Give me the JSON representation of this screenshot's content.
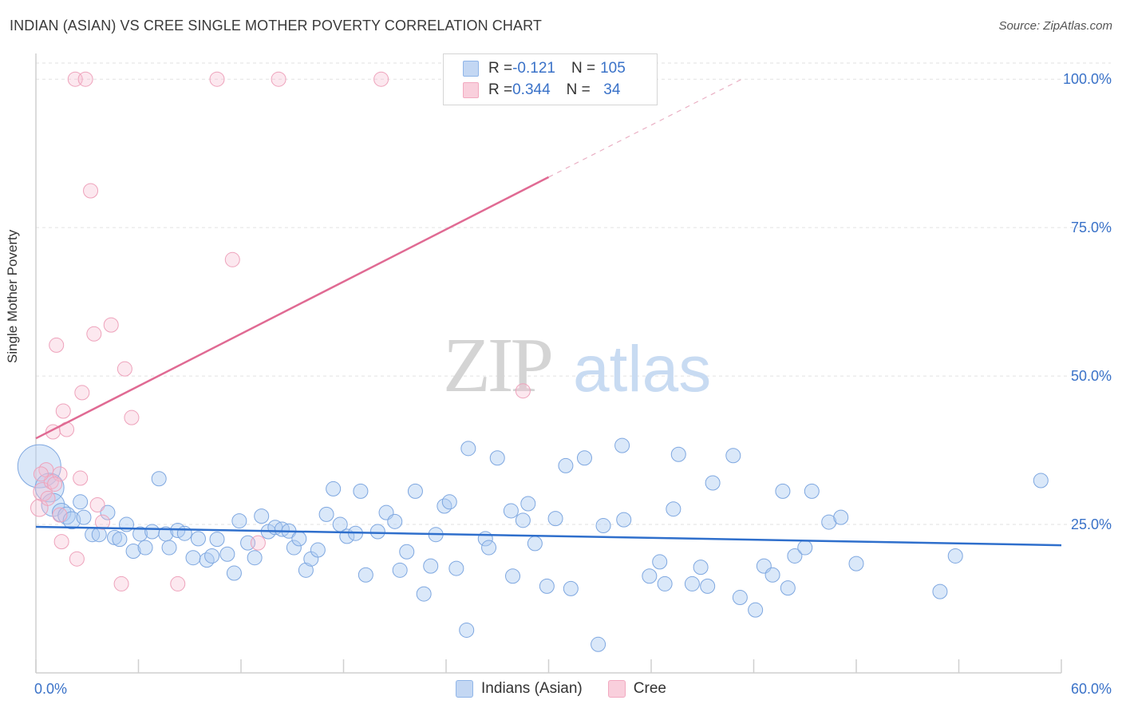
{
  "title": "INDIAN (ASIAN) VS CREE SINGLE MOTHER POVERTY CORRELATION CHART",
  "source": "Source: ZipAtlas.com",
  "watermark": {
    "zip": "ZIP",
    "atlas": "atlas"
  },
  "colors": {
    "blue": "#8fb5e8",
    "blue_line": "#2f6fcc",
    "pink": "#f2a9c0",
    "pink_line": "#e06a93",
    "tick_blue": "#3a72c8"
  },
  "legend": {
    "rows": [
      {
        "r_label": "R = ",
        "r_value": "-0.121",
        "n_label": "N = ",
        "n_value": "105"
      },
      {
        "r_label": "R = ",
        "r_value": "0.344",
        "n_label": "N = ",
        "n_value": " 34"
      }
    ]
  },
  "chart_data": {
    "type": "scatter",
    "ylabel": "Single Mother Poverty",
    "xlabel": "",
    "xlim": [
      0,
      60
    ],
    "ylim": [
      0,
      105
    ],
    "x_tick_labels": [
      "0.0%",
      "60.0%"
    ],
    "y_ticks": [
      25,
      50,
      75,
      100
    ],
    "y_tick_labels": [
      "25.0%",
      "50.0%",
      "75.0%",
      "100.0%"
    ],
    "grid": true,
    "legend_position": "top-center",
    "series": [
      {
        "name": "Indians (Asian)",
        "color": "#8fb5e8",
        "trend": {
          "x0": 0,
          "y0": 24.6,
          "x1": 60,
          "y1": 21.5
        },
        "points": [
          [
            0.2,
            34.8,
            3
          ],
          [
            0.8,
            31.2,
            2
          ],
          [
            1.0,
            28.3,
            1.6
          ],
          [
            1.5,
            27.0,
            1.3
          ],
          [
            1.8,
            26.5,
            1.2
          ],
          [
            2.1,
            25.7,
            1.2
          ],
          [
            2.6,
            28.8,
            1
          ],
          [
            2.8,
            26.2,
            1
          ],
          [
            3.3,
            23.3,
            1
          ],
          [
            3.7,
            23.3,
            1
          ],
          [
            4.2,
            27.0,
            1
          ],
          [
            4.6,
            22.8,
            1
          ],
          [
            4.9,
            22.5,
            1
          ],
          [
            5.3,
            25.0,
            1
          ],
          [
            5.7,
            20.5,
            1
          ],
          [
            6.1,
            23.4,
            1
          ],
          [
            6.4,
            21.1,
            1
          ],
          [
            6.8,
            23.8,
            1
          ],
          [
            7.2,
            32.7,
            1
          ],
          [
            7.6,
            23.4,
            1
          ],
          [
            7.8,
            21.1,
            1
          ],
          [
            8.3,
            24.0,
            1
          ],
          [
            8.7,
            23.5,
            1
          ],
          [
            9.2,
            19.4,
            1
          ],
          [
            9.5,
            22.6,
            1
          ],
          [
            10.0,
            19.0,
            1
          ],
          [
            10.3,
            19.7,
            1
          ],
          [
            10.6,
            22.5,
            1
          ],
          [
            11.2,
            20.0,
            1
          ],
          [
            11.6,
            16.8,
            1
          ],
          [
            11.9,
            25.6,
            1
          ],
          [
            12.4,
            21.9,
            1
          ],
          [
            12.8,
            19.4,
            1
          ],
          [
            13.2,
            26.4,
            1
          ],
          [
            13.6,
            23.8,
            1
          ],
          [
            14.0,
            24.5,
            1
          ],
          [
            14.4,
            24.2,
            1
          ],
          [
            14.8,
            23.9,
            1
          ],
          [
            15.1,
            21.1,
            1
          ],
          [
            15.4,
            22.6,
            1
          ],
          [
            15.8,
            17.3,
            1
          ],
          [
            16.1,
            19.2,
            1
          ],
          [
            16.5,
            20.7,
            1
          ],
          [
            17.0,
            26.7,
            1
          ],
          [
            17.4,
            31.0,
            1
          ],
          [
            17.8,
            25.0,
            1
          ],
          [
            18.2,
            23.0,
            1
          ],
          [
            18.7,
            23.5,
            1
          ],
          [
            19.0,
            30.6,
            1
          ],
          [
            19.3,
            16.5,
            1
          ],
          [
            20.0,
            23.8,
            1
          ],
          [
            20.5,
            27.0,
            1
          ],
          [
            21.0,
            25.5,
            1
          ],
          [
            21.3,
            17.3,
            1
          ],
          [
            21.7,
            20.4,
            1
          ],
          [
            22.2,
            30.6,
            1
          ],
          [
            22.7,
            13.3,
            1
          ],
          [
            23.1,
            18.0,
            1
          ],
          [
            23.4,
            23.3,
            1
          ],
          [
            23.9,
            28.1,
            1
          ],
          [
            24.2,
            28.8,
            1
          ],
          [
            24.6,
            17.6,
            1
          ],
          [
            25.2,
            7.2,
            1
          ],
          [
            25.3,
            37.8,
            1
          ],
          [
            26.3,
            22.6,
            1
          ],
          [
            26.5,
            21.1,
            1
          ],
          [
            27.0,
            36.2,
            1
          ],
          [
            27.9,
            16.3,
            1
          ],
          [
            27.8,
            27.3,
            1
          ],
          [
            28.5,
            25.7,
            1
          ],
          [
            28.8,
            28.5,
            1
          ],
          [
            29.2,
            21.8,
            1
          ],
          [
            29.9,
            14.6,
            1
          ],
          [
            30.4,
            26.0,
            1
          ],
          [
            31.0,
            34.9,
            1
          ],
          [
            31.3,
            14.2,
            1
          ],
          [
            32.1,
            36.2,
            1
          ],
          [
            32.9,
            4.8,
            1
          ],
          [
            33.2,
            24.8,
            1
          ],
          [
            34.3,
            38.3,
            1
          ],
          [
            34.4,
            25.8,
            1
          ],
          [
            35.9,
            16.3,
            1
          ],
          [
            36.5,
            18.7,
            1
          ],
          [
            36.8,
            15.0,
            1
          ],
          [
            37.3,
            27.6,
            1
          ],
          [
            37.6,
            36.8,
            1
          ],
          [
            38.4,
            15.0,
            1
          ],
          [
            38.9,
            17.8,
            1
          ],
          [
            39.3,
            14.6,
            1
          ],
          [
            39.6,
            32.0,
            1
          ],
          [
            40.8,
            36.6,
            1
          ],
          [
            41.2,
            12.7,
            1
          ],
          [
            42.1,
            10.6,
            1
          ],
          [
            42.6,
            18.0,
            1
          ],
          [
            43.1,
            16.5,
            1
          ],
          [
            43.7,
            30.6,
            1
          ],
          [
            44.0,
            14.3,
            1
          ],
          [
            44.4,
            19.7,
            1
          ],
          [
            45.0,
            21.1,
            1
          ],
          [
            45.4,
            30.6,
            1
          ],
          [
            46.4,
            25.4,
            1
          ],
          [
            47.1,
            26.2,
            1
          ],
          [
            48.0,
            18.4,
            1
          ],
          [
            52.9,
            13.7,
            1
          ],
          [
            53.8,
            19.7,
            1
          ],
          [
            58.8,
            32.4,
            1
          ]
        ]
      },
      {
        "name": "Cree",
        "color": "#f2a9c0",
        "trend": {
          "x0": 0,
          "y0": 39.5,
          "x1": 30,
          "y1": 83.5,
          "dash_x1": 41.3,
          "dash_y1": 100
        },
        "points": [
          [
            0.2,
            27.8,
            1.2
          ],
          [
            0.4,
            30.5,
            1.3
          ],
          [
            0.6,
            34.2,
            1
          ],
          [
            0.9,
            32.2,
            1
          ],
          [
            1.0,
            40.6,
            1
          ],
          [
            1.2,
            55.2,
            1
          ],
          [
            1.4,
            33.5,
            1
          ],
          [
            1.5,
            22.1,
            1
          ],
          [
            1.6,
            44.1,
            1
          ],
          [
            1.8,
            41.0,
            1
          ],
          [
            2.4,
            19.2,
            1
          ],
          [
            2.7,
            47.2,
            1
          ],
          [
            2.6,
            32.8,
            1
          ],
          [
            3.2,
            81.2,
            1
          ],
          [
            3.4,
            57.1,
            1
          ],
          [
            3.6,
            28.3,
            1
          ],
          [
            3.9,
            25.4,
            1
          ],
          [
            4.4,
            58.6,
            1
          ],
          [
            5.0,
            15.0,
            1
          ],
          [
            5.2,
            51.2,
            1
          ],
          [
            5.6,
            43.0,
            1
          ],
          [
            8.3,
            15.0,
            1
          ],
          [
            10.6,
            100,
            1
          ],
          [
            11.5,
            69.6,
            1
          ],
          [
            13.0,
            21.9,
            1
          ],
          [
            14.2,
            100,
            1
          ],
          [
            20.2,
            100,
            1
          ],
          [
            28.5,
            47.5,
            1
          ],
          [
            2.3,
            100,
            1
          ],
          [
            2.9,
            100,
            1
          ],
          [
            1.4,
            26.6,
            1
          ],
          [
            0.7,
            29.4,
            1
          ],
          [
            0.3,
            33.5,
            1
          ],
          [
            1.1,
            31.8,
            1
          ]
        ]
      }
    ]
  }
}
